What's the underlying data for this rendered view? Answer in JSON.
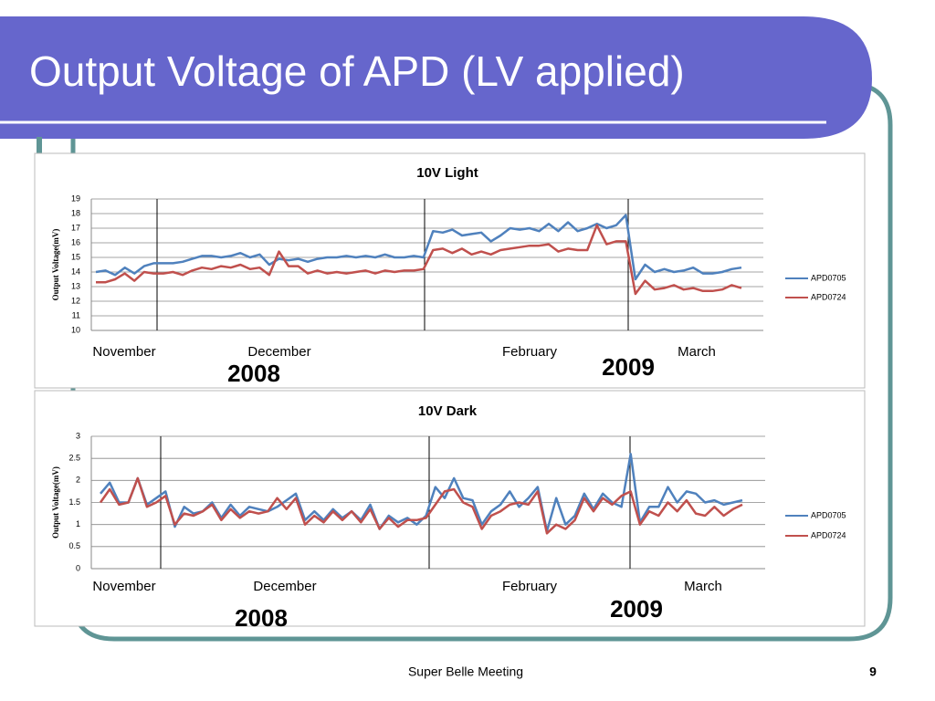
{
  "slide": {
    "title": "Output Voltage of APD (LV applied)",
    "footer": "Super Belle Meeting",
    "page_number": "9"
  },
  "chart_data": [
    {
      "type": "line",
      "title": "10V Light",
      "y_label": "Output Voltage(mV)",
      "ylim": [
        10,
        19
      ],
      "yticks": [
        10,
        11,
        12,
        13,
        14,
        15,
        16,
        17,
        18,
        19
      ],
      "grid": true,
      "legend": "right",
      "x_labels": [
        "November",
        "December",
        "February",
        "March"
      ],
      "annotations": [
        "2008",
        "2009"
      ],
      "series": [
        {
          "name": "APD0705",
          "color": "#4f81bd",
          "values": [
            14,
            14.1,
            13.8,
            14.3,
            13.9,
            14.4,
            14.6,
            14.6,
            14.6,
            14.7,
            14.9,
            15.1,
            15.1,
            15.0,
            15.1,
            15.3,
            15.0,
            15.2,
            14.5,
            14.9,
            14.8,
            14.9,
            14.7,
            14.9,
            15.0,
            15.0,
            15.1,
            15.0,
            15.1,
            15.0,
            15.2,
            15.0,
            15.0,
            15.1,
            15.0,
            16.8,
            16.7,
            16.9,
            16.5,
            16.6,
            16.7,
            16.1,
            16.5,
            17.0,
            16.9,
            17.0,
            16.8,
            17.3,
            16.8,
            17.4,
            16.8,
            17.0,
            17.3,
            17.0,
            17.2,
            17.9,
            13.5,
            14.5,
            14.0,
            14.2,
            14.0,
            14.1,
            14.3,
            13.9,
            13.9,
            14.0,
            14.2,
            14.3
          ]
        },
        {
          "name": "APD0724",
          "color": "#c0504d",
          "values": [
            13.3,
            13.3,
            13.5,
            13.9,
            13.4,
            14.0,
            13.9,
            13.9,
            14.0,
            13.8,
            14.1,
            14.3,
            14.2,
            14.4,
            14.3,
            14.5,
            14.2,
            14.3,
            13.8,
            15.4,
            14.4,
            14.4,
            13.9,
            14.1,
            13.9,
            14.0,
            13.9,
            14.0,
            14.1,
            13.9,
            14.1,
            14.0,
            14.1,
            14.1,
            14.2,
            15.5,
            15.6,
            15.3,
            15.6,
            15.2,
            15.4,
            15.2,
            15.5,
            15.6,
            15.7,
            15.8,
            15.8,
            15.9,
            15.4,
            15.6,
            15.5,
            15.5,
            17.2,
            15.9,
            16.1,
            16.1,
            12.5,
            13.4,
            12.8,
            12.9,
            13.1,
            12.8,
            12.9,
            12.7,
            12.7,
            12.8,
            13.1,
            12.9
          ]
        }
      ]
    },
    {
      "type": "line",
      "title": "10V Dark",
      "y_label": "Output Voltage(mV)",
      "ylim": [
        0,
        3
      ],
      "yticks": [
        0,
        0.5,
        1,
        1.5,
        2,
        2.5,
        3
      ],
      "grid": true,
      "legend": "right",
      "x_labels": [
        "November",
        "December",
        "February",
        "March"
      ],
      "annotations": [
        "2008",
        "2009"
      ],
      "series": [
        {
          "name": "APD0705",
          "color": "#4f81bd",
          "values": [
            1.7,
            1.95,
            1.5,
            1.5,
            2.05,
            1.45,
            1.6,
            1.75,
            0.95,
            1.4,
            1.25,
            1.3,
            1.5,
            1.15,
            1.45,
            1.2,
            1.4,
            1.35,
            1.3,
            1.4,
            1.55,
            1.7,
            1.1,
            1.3,
            1.1,
            1.35,
            1.15,
            1.3,
            1.1,
            1.45,
            0.9,
            1.2,
            1.05,
            1.15,
            1.0,
            1.2,
            1.85,
            1.6,
            2.05,
            1.6,
            1.55,
            1.0,
            1.3,
            1.45,
            1.75,
            1.4,
            1.6,
            1.85,
            0.85,
            1.6,
            1.0,
            1.2,
            1.7,
            1.35,
            1.7,
            1.5,
            1.4,
            2.6,
            1.05,
            1.4,
            1.4,
            1.85,
            1.5,
            1.75,
            1.7,
            1.5,
            1.55,
            1.45,
            1.5,
            1.55
          ]
        },
        {
          "name": "APD0724",
          "color": "#c0504d",
          "values": [
            1.5,
            1.8,
            1.45,
            1.5,
            2.05,
            1.4,
            1.5,
            1.65,
            1.0,
            1.25,
            1.2,
            1.3,
            1.45,
            1.1,
            1.35,
            1.15,
            1.3,
            1.25,
            1.3,
            1.6,
            1.35,
            1.6,
            1.0,
            1.2,
            1.05,
            1.3,
            1.1,
            1.3,
            1.05,
            1.35,
            0.9,
            1.15,
            0.95,
            1.1,
            1.1,
            1.15,
            1.45,
            1.75,
            1.8,
            1.5,
            1.4,
            0.9,
            1.2,
            1.3,
            1.45,
            1.5,
            1.45,
            1.75,
            0.8,
            1.0,
            0.9,
            1.1,
            1.6,
            1.3,
            1.6,
            1.45,
            1.65,
            1.75,
            1.0,
            1.3,
            1.2,
            1.5,
            1.3,
            1.55,
            1.25,
            1.2,
            1.4,
            1.2,
            1.35,
            1.45
          ]
        }
      ]
    }
  ]
}
